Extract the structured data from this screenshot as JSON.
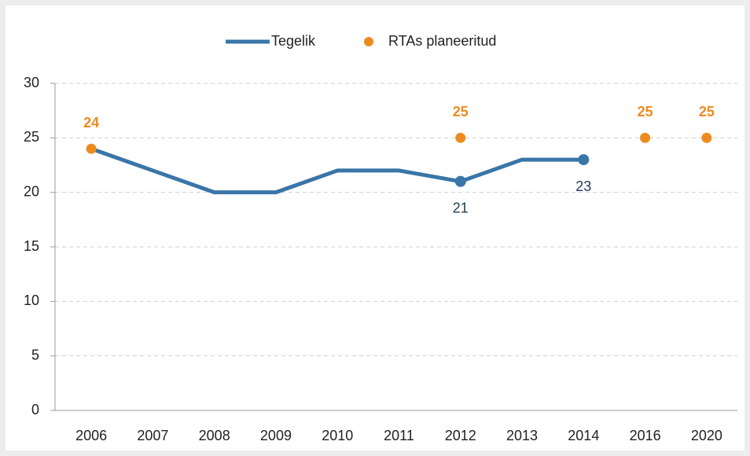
{
  "chart_data": {
    "type": "line",
    "categories": [
      "2006",
      "2007",
      "2008",
      "2009",
      "2010",
      "2011",
      "2012",
      "2013",
      "2014",
      "2016",
      "2020"
    ],
    "series": [
      {
        "name": "Tegelik",
        "type": "line",
        "color": "#3a75a8",
        "values": [
          24,
          22,
          20,
          20,
          22,
          22,
          21,
          23,
          23,
          null,
          null
        ],
        "value_labels": [
          null,
          null,
          null,
          null,
          null,
          null,
          "21",
          null,
          "23",
          null,
          null
        ]
      },
      {
        "name": "RTAs planeeritud",
        "type": "scatter",
        "color": "#ed8b1f",
        "values": [
          24,
          null,
          null,
          null,
          null,
          null,
          25,
          null,
          null,
          25,
          25
        ],
        "value_labels": [
          "24",
          null,
          null,
          null,
          null,
          null,
          "25",
          null,
          null,
          "25",
          "25"
        ]
      }
    ],
    "ylim": [
      0,
      30
    ],
    "yticks": [
      0,
      5,
      10,
      15,
      20,
      25,
      30
    ],
    "grid": true,
    "legend": "top"
  }
}
